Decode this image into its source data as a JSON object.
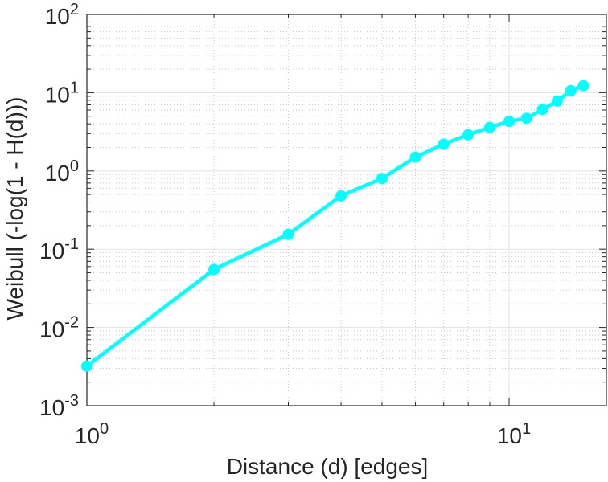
{
  "chart_data": {
    "type": "line",
    "title": "",
    "xlabel": "Distance (d) [edges]",
    "ylabel": "Weibull (-log(1 - H(d)))",
    "x_scale": "log",
    "y_scale": "log",
    "xlim": [
      1,
      17
    ],
    "ylim": [
      0.001,
      100
    ],
    "grid": true,
    "x_ticks": [
      {
        "value": 1,
        "base": "10",
        "exp": "0"
      },
      {
        "value": 10,
        "base": "10",
        "exp": "1"
      }
    ],
    "y_ticks": [
      {
        "value": 0.001,
        "base": "10",
        "exp": "-3"
      },
      {
        "value": 0.01,
        "base": "10",
        "exp": "-2"
      },
      {
        "value": 0.1,
        "base": "10",
        "exp": "-1"
      },
      {
        "value": 1,
        "base": "10",
        "exp": "0"
      },
      {
        "value": 10,
        "base": "10",
        "exp": "1"
      },
      {
        "value": 100,
        "base": "10",
        "exp": "2"
      }
    ],
    "series": [
      {
        "color": "#00ffff",
        "marker": "circle",
        "x": [
          1,
          2,
          3,
          4,
          5,
          6,
          7,
          8,
          9,
          10,
          11,
          12,
          13,
          14,
          15
        ],
        "y": [
          0.0032,
          0.055,
          0.155,
          0.48,
          0.8,
          1.5,
          2.2,
          2.9,
          3.6,
          4.3,
          4.7,
          6.1,
          7.8,
          10.6,
          12.3
        ]
      }
    ]
  }
}
